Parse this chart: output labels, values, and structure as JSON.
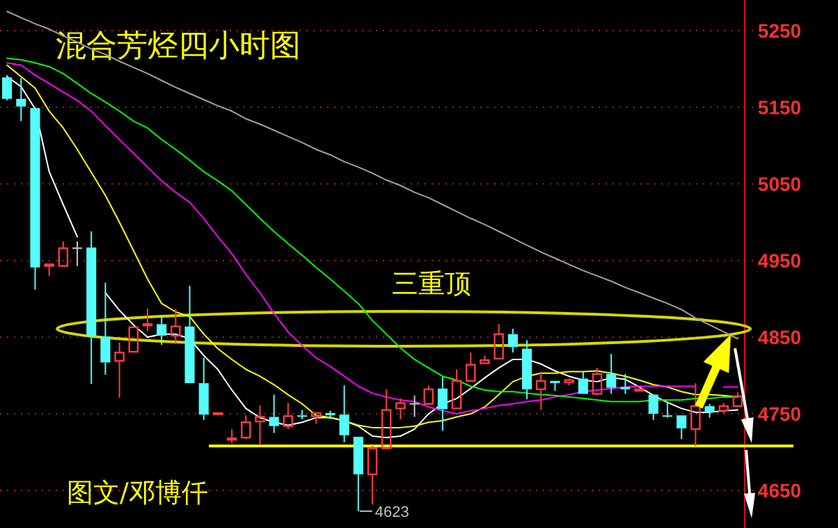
{
  "chart_data": {
    "type": "candlestick",
    "title": "混合芳烃四小时图",
    "categories": [
      null,
      null,
      null,
      null,
      null,
      null,
      null,
      null,
      null,
      null,
      null,
      null,
      null,
      null,
      null,
      null,
      null,
      null,
      null,
      null,
      null,
      null,
      null,
      null,
      null,
      null,
      null,
      null,
      null,
      null,
      null,
      null,
      null,
      null,
      null,
      null,
      null,
      null,
      null,
      null,
      null,
      null,
      null,
      null,
      null,
      null,
      null,
      null,
      null,
      null,
      null,
      null,
      null
    ],
    "ohlc": [
      [
        5189,
        5192,
        5159,
        5161
      ],
      [
        5161,
        5188,
        5132,
        5151
      ],
      [
        5149,
        5149,
        4912,
        4941
      ],
      [
        4943,
        4945,
        4930,
        4945
      ],
      [
        4943,
        4975,
        4943,
        4966
      ],
      [
        4967,
        4975,
        4943,
        4967
      ],
      [
        4967,
        4988,
        4789,
        4851
      ],
      [
        4851,
        4921,
        4801,
        4817
      ],
      [
        4819,
        4843,
        4771,
        4830
      ],
      [
        4831,
        4863,
        4831,
        4863
      ],
      [
        4866,
        4887,
        4858,
        4867
      ],
      [
        4867,
        4879,
        4840,
        4852
      ],
      [
        4852,
        4887,
        4841,
        4864
      ],
      [
        4864,
        4917,
        4790,
        4790
      ],
      [
        4790,
        4823,
        4742,
        4749
      ],
      [
        4750,
        4751,
        4749,
        4751
      ],
      [
        4717,
        4730,
        4712,
        4718
      ],
      [
        4719,
        4748,
        4717,
        4739
      ],
      [
        4740,
        4761,
        4710,
        4746
      ],
      [
        4746,
        4775,
        4725,
        4734
      ],
      [
        4734,
        4764,
        4730,
        4747
      ],
      [
        4748,
        4755,
        4743,
        4747
      ],
      [
        4747,
        4751,
        4737,
        4751
      ],
      [
        4751,
        4754,
        4743,
        4748
      ],
      [
        4749,
        4787,
        4713,
        4722
      ],
      [
        4720,
        4720,
        4623,
        4671
      ],
      [
        4671,
        4708,
        4632,
        4705
      ],
      [
        4705,
        4782,
        4705,
        4755
      ],
      [
        4757,
        4770,
        4743,
        4764
      ],
      [
        4764,
        4774,
        4746,
        4764
      ],
      [
        4763,
        4787,
        4763,
        4782
      ],
      [
        4783,
        4798,
        4728,
        4756
      ],
      [
        4757,
        4808,
        4757,
        4793
      ],
      [
        4793,
        4830,
        4793,
        4814
      ],
      [
        4816,
        4826,
        4816,
        4820
      ],
      [
        4822,
        4867,
        4822,
        4854
      ],
      [
        4854,
        4861,
        4830,
        4837
      ],
      [
        4835,
        4846,
        4769,
        4782
      ],
      [
        4782,
        4805,
        4755,
        4793
      ],
      [
        4793,
        4793,
        4780,
        4790
      ],
      [
        4791,
        4796,
        4787,
        4794
      ],
      [
        4796,
        4805,
        4776,
        4776
      ],
      [
        4776,
        4810,
        4775,
        4802
      ],
      [
        4802,
        4828,
        4776,
        4784
      ],
      [
        4785,
        4802,
        4776,
        4782
      ],
      [
        4780,
        4782,
        4780,
        4782
      ],
      [
        4775,
        4775,
        4742,
        4750
      ],
      [
        4748,
        4766,
        4745,
        4747
      ],
      [
        4748,
        4748,
        4717,
        4731
      ],
      [
        4730,
        4790,
        4708,
        4760
      ],
      [
        4760,
        4763,
        4745,
        4752
      ],
      [
        4754,
        4764,
        4750,
        4760
      ],
      [
        4760,
        4778,
        4760,
        4773
      ]
    ],
    "series": [
      {
        "type": "line",
        "color": "#ffffff",
        "values": [
          5190,
          5177,
          5148,
          5066,
          5023,
          4981,
          null,
          4908,
          4885,
          4866,
          4850,
          4854,
          4854,
          4848,
          4826,
          4808,
          4781,
          4757,
          4745,
          4739,
          4735,
          4739,
          4745,
          4745,
          4741,
          4734,
          4721,
          4719,
          4721,
          4730,
          4750,
          4763,
          4770,
          4783,
          4797,
          4810,
          4821,
          4821,
          4815,
          4806,
          4799,
          4794,
          4792,
          4797,
          4795,
          4785,
          4774,
          4765,
          4757,
          4752,
          4752,
          4754,
          4755
        ]
      },
      {
        "type": "line",
        "color": "#ffff00",
        "values": [
          5205,
          5190,
          5175,
          5145,
          5123,
          5095,
          5065,
          5035,
          5000,
          4963,
          4926,
          4894,
          4883,
          4877,
          4854,
          4835,
          4821,
          4808,
          4799,
          4788,
          4775,
          4763,
          4748,
          4745,
          4741,
          4735,
          4732,
          4732,
          4732,
          4734,
          4739,
          4741,
          4746,
          4750,
          4759,
          4775,
          4792,
          4799,
          4803,
          4803,
          4805,
          4805,
          4806,
          4803,
          4799,
          4794,
          4788,
          4785,
          4779,
          4775,
          4775,
          4774,
          4772
        ]
      },
      {
        "type": "line",
        "color": "#ff00ff",
        "values": [
          5208,
          5205,
          5192,
          5181,
          5170,
          5159,
          5145,
          5126,
          5108,
          5090,
          5072,
          5054,
          5039,
          5026,
          5005,
          4981,
          4959,
          4932,
          4908,
          4881,
          4857,
          4839,
          4823,
          4812,
          4799,
          4786,
          4777,
          4772,
          4768,
          4766,
          4759,
          4754,
          4750,
          4754,
          4757,
          4761,
          4763,
          4766,
          4768,
          4772,
          4775,
          4779,
          4781,
          4783,
          4785,
          4786,
          4786,
          4786,
          4786,
          4786,
          null,
          4785,
          4785
        ]
      },
      {
        "type": "line",
        "color": "#00ff00",
        "values": [
          5214,
          5212,
          5208,
          5203,
          5194,
          5181,
          5168,
          5157,
          5145,
          5132,
          5123,
          5108,
          5095,
          5081,
          5066,
          5054,
          5041,
          5023,
          5005,
          4988,
          4972,
          4957,
          4941,
          4926,
          4910,
          4894,
          4872,
          4854,
          4836,
          4821,
          4810,
          4799,
          4794,
          4786,
          4781,
          4779,
          4779,
          4777,
          4775,
          4774,
          4772,
          4770,
          4768,
          4766,
          4766,
          4766,
          4768,
          4768,
          4768,
          4770,
          4770,
          4772,
          4772
        ]
      },
      {
        "type": "line",
        "color": "#a0a0a0",
        "values": [
          5275,
          5267,
          5259,
          5252,
          5243,
          5235,
          5226,
          5219,
          5210,
          5202,
          5194,
          5185,
          5176,
          5168,
          5160,
          5152,
          5145,
          5135,
          5128,
          5120,
          5112,
          5104,
          5095,
          5088,
          5079,
          5072,
          5064,
          5055,
          5048,
          5039,
          5032,
          5023,
          5014,
          5005,
          4997,
          4988,
          4979,
          4970,
          4961,
          4953,
          4945,
          4937,
          4930,
          4923,
          4915,
          4908,
          4901,
          4894,
          4886,
          4875,
          4866,
          4857,
          4848
        ]
      }
    ],
    "ylim": [
      4601,
      5290
    ],
    "yticks": [
      4650,
      4750,
      4850,
      4950,
      5050,
      5150,
      5250
    ],
    "tick_labels": "y",
    "grid": "y",
    "ref_lines": [
      {
        "axis": "y",
        "value": 4708,
        "color": "#ffff00"
      }
    ],
    "annotations": [
      "三重顶",
      "图文/邓博仟",
      "4623"
    ]
  }
}
